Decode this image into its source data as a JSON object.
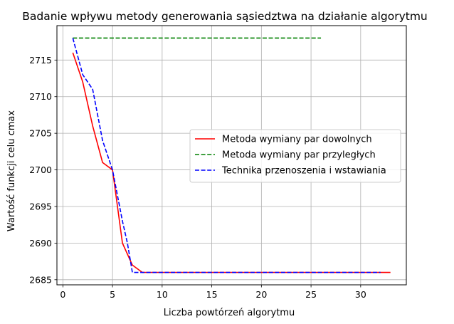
{
  "chart_data": {
    "type": "line",
    "title": "Badanie wpływu metody generowania sąsiedztwa na działanie algorytmu",
    "xlabel": "Liczba powtórzeń algorytmu",
    "ylabel": "Wartość funkcji celu cmax",
    "xlim": [
      -0.6,
      34.6
    ],
    "ylim": [
      2684.3,
      2719.7
    ],
    "xticks": [
      0,
      5,
      10,
      15,
      20,
      25,
      30
    ],
    "yticks": [
      2685,
      2690,
      2695,
      2700,
      2705,
      2710,
      2715
    ],
    "grid": true,
    "legend_position": "center-right",
    "series": [
      {
        "name": "Metoda wymiany par dowolnych",
        "color": "#ff0000",
        "dash": "solid",
        "x": [
          1,
          2,
          3,
          4,
          5,
          6,
          7,
          8,
          9,
          10,
          11,
          12,
          13,
          14,
          15,
          16,
          17,
          18,
          19,
          20,
          21,
          22,
          23,
          24,
          25,
          26,
          27,
          28,
          29,
          30,
          31,
          32,
          33
        ],
        "y": [
          2716,
          2712,
          2706,
          2701,
          2700,
          2690,
          2687,
          2686,
          2686,
          2686,
          2686,
          2686,
          2686,
          2686,
          2686,
          2686,
          2686,
          2686,
          2686,
          2686,
          2686,
          2686,
          2686,
          2686,
          2686,
          2686,
          2686,
          2686,
          2686,
          2686,
          2686,
          2686,
          2686
        ]
      },
      {
        "name": "Metoda wymiany par przyległych",
        "color": "#008000",
        "dash": "dashed",
        "x": [
          1,
          2,
          3,
          4,
          5,
          6,
          7,
          8,
          9,
          10,
          11,
          12,
          13,
          14,
          15,
          16,
          17,
          18,
          19,
          20,
          21,
          22,
          23,
          24,
          25,
          26
        ],
        "y": [
          2718,
          2718,
          2718,
          2718,
          2718,
          2718,
          2718,
          2718,
          2718,
          2718,
          2718,
          2718,
          2718,
          2718,
          2718,
          2718,
          2718,
          2718,
          2718,
          2718,
          2718,
          2718,
          2718,
          2718,
          2718,
          2718
        ]
      },
      {
        "name": "Technika przenoszenia i wstawiania",
        "color": "#0000ff",
        "dash": "dashed",
        "x": [
          1,
          2,
          3,
          4,
          5,
          6,
          6.5,
          7,
          8,
          9,
          10,
          11,
          12,
          13,
          14,
          15,
          16,
          17,
          18,
          19,
          20,
          21,
          22,
          23,
          24,
          25,
          26,
          27,
          28,
          29,
          30,
          31,
          32
        ],
        "y": [
          2718,
          2713,
          2711,
          2704,
          2700,
          2693,
          2690,
          2686,
          2686,
          2686,
          2686,
          2686,
          2686,
          2686,
          2686,
          2686,
          2686,
          2686,
          2686,
          2686,
          2686,
          2686,
          2686,
          2686,
          2686,
          2686,
          2686,
          2686,
          2686,
          2686,
          2686,
          2686,
          2686
        ]
      }
    ]
  }
}
